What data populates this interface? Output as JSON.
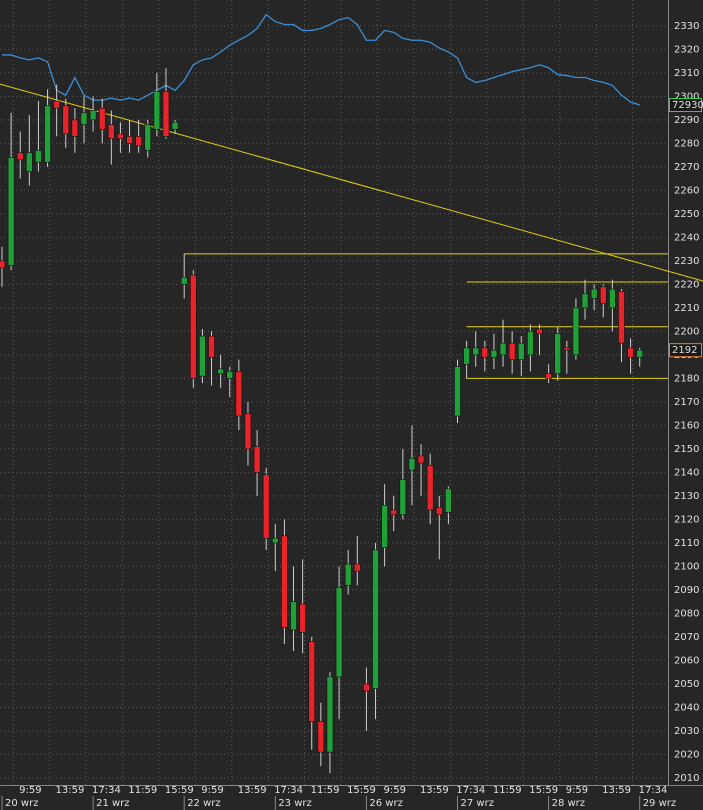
{
  "chart_data": {
    "type": "candlestick",
    "up_color": "#21a03a",
    "down_color": "#e8242a",
    "grid": true,
    "ylim": [
      2007,
      2341
    ],
    "yticks": [
      2010,
      2020,
      2030,
      2040,
      2050,
      2060,
      2070,
      2080,
      2090,
      2100,
      2110,
      2120,
      2130,
      2140,
      2150,
      2160,
      2170,
      2180,
      2190,
      2200,
      2210,
      2220,
      2230,
      2240,
      2250,
      2260,
      2270,
      2280,
      2290,
      2300,
      2310,
      2320,
      2330
    ],
    "y2lim": [
      66000,
      74000
    ],
    "categories": [
      null,
      "9:59",
      null,
      null,
      null,
      "13:59",
      null,
      null,
      null,
      "17:34",
      null,
      null,
      null,
      "11:59",
      null,
      null,
      null,
      "15:59",
      null,
      null,
      null,
      "9:59",
      null,
      null,
      null,
      "13:59",
      null,
      null,
      null,
      "17:34",
      null,
      null,
      null,
      "11:59",
      null,
      null,
      null,
      "15:59",
      null,
      null,
      null,
      "9:59",
      null,
      null,
      null,
      "13:59",
      null,
      null,
      null,
      "17:34",
      null,
      null,
      null,
      "11:59",
      null,
      null,
      null,
      "15:59",
      null,
      null,
      null,
      "9:59",
      null,
      null,
      null,
      "13:59",
      null,
      null,
      null,
      "17:34",
      null
    ],
    "dates": [
      "20 wrz",
      null,
      null,
      null,
      null,
      null,
      null,
      null,
      null,
      null,
      "21 wrz",
      null,
      null,
      null,
      null,
      null,
      null,
      null,
      null,
      null,
      "22 wrz",
      null,
      null,
      null,
      null,
      null,
      null,
      null,
      null,
      null,
      "23 wrz",
      null,
      null,
      null,
      null,
      null,
      null,
      null,
      null,
      null,
      "26 wrz",
      null,
      null,
      null,
      null,
      null,
      null,
      null,
      null,
      null,
      "27 wrz",
      null,
      null,
      null,
      null,
      null,
      null,
      null,
      null,
      null,
      "28 wrz",
      null,
      null,
      null,
      null,
      null,
      null,
      null,
      null,
      null,
      "29 wrz"
    ],
    "series": [
      {
        "open": [
          2230,
          2228,
          2276,
          2268,
          2272,
          2272,
          2298,
          2296,
          2290,
          2288,
          2290,
          2295,
          2288,
          2284,
          2283,
          2283,
          2277,
          2286,
          2302,
          2286,
          2220,
          2224,
          2181,
          2198,
          2182,
          2180,
          2183,
          2165,
          2151,
          2139,
          2110,
          2113,
          2073,
          2084,
          2068,
          2034,
          2021,
          2053,
          2092,
          2101,
          2050,
          2048,
          2108,
          2124,
          2122,
          2141,
          2147,
          2143,
          2125,
          2123,
          2164,
          2186,
          2190,
          2193,
          2189,
          2190,
          2195,
          2188,
          2190,
          2201,
          2182,
          2182,
          2193,
          2190,
          2210,
          2214,
          2219,
          2210,
          2217,
          2193,
          2189
        ],
        "high": [
          2236,
          2293,
          2285,
          2292,
          2298,
          2303,
          2305,
          2299,
          2295,
          2300,
          2300,
          2299,
          2294,
          2289,
          2290,
          2290,
          2290,
          2310,
          2312,
          2290,
          2233,
          2226,
          2201,
          2200,
          2190,
          2185,
          2188,
          2170,
          2158,
          2142,
          2118,
          2120,
          2100,
          2103,
          2070,
          2042,
          2055,
          2100,
          2107,
          2113,
          2057,
          2110,
          2135,
          2130,
          2150,
          2160,
          2152,
          2148,
          2130,
          2134,
          2188,
          2196,
          2200,
          2196,
          2199,
          2205,
          2200,
          2198,
          2203,
          2203,
          2186,
          2202,
          2196,
          2214,
          2222,
          2220,
          2220,
          2222,
          2218,
          2197,
          2193
        ],
        "low": [
          2219,
          2226,
          2265,
          2262,
          2268,
          2270,
          2283,
          2278,
          2276,
          2280,
          2285,
          2280,
          2271,
          2276,
          2276,
          2276,
          2274,
          2283,
          2282,
          2284,
          2214,
          2176,
          2178,
          2177,
          2176,
          2172,
          2158,
          2143,
          2130,
          2107,
          2098,
          2067,
          2064,
          2063,
          2022,
          2015,
          2012,
          2035,
          2088,
          2092,
          2030,
          2035,
          2100,
          2115,
          2120,
          2126,
          2130,
          2118,
          2103,
          2118,
          2161,
          2180,
          2185,
          2183,
          2184,
          2185,
          2182,
          2181,
          2183,
          2190,
          2178,
          2179,
          2182,
          2188,
          2205,
          2209,
          2206,
          2200,
          2187,
          2182,
          2185
        ],
        "close": [
          2227,
          2274,
          2273,
          2276,
          2277,
          2296,
          2295,
          2284,
          2283,
          2293,
          2294,
          2286,
          2282,
          2282,
          2280,
          2279,
          2288,
          2302,
          2283,
          2289,
          2223,
          2180,
          2198,
          2189,
          2184,
          2183,
          2164,
          2150,
          2140,
          2112,
          2112,
          2074,
          2085,
          2072,
          2034,
          2021,
          2053,
          2091,
          2101,
          2098,
          2047,
          2107,
          2126,
          2122,
          2137,
          2146,
          2144,
          2124,
          2122,
          2133,
          2185,
          2193,
          2193,
          2189,
          2192,
          2195,
          2188,
          2195,
          2200,
          2199,
          2180,
          2199,
          2192,
          2210,
          2216,
          2218,
          2212,
          2218,
          2195,
          2189,
          2192
        ],
        "label_color": "#e8822a"
      },
      {
        "axis": "y2",
        "color": "#3a8fd8",
        "label_color": "#2fd04a",
        "values": [
          73440,
          73440,
          73410,
          73390,
          73410,
          73370,
          73080,
          73030,
          73210,
          73030,
          72980,
          72980,
          73000,
          72980,
          73000,
          72980,
          73030,
          73080,
          73130,
          73080,
          73180,
          73340,
          73390,
          73410,
          73470,
          73540,
          73590,
          73640,
          73710,
          73850,
          73780,
          73750,
          73750,
          73690,
          73690,
          73710,
          73750,
          73800,
          73820,
          73750,
          73590,
          73590,
          73690,
          73670,
          73610,
          73590,
          73590,
          73570,
          73510,
          73470,
          73410,
          73210,
          73160,
          73180,
          73210,
          73240,
          73270,
          73290,
          73310,
          73340,
          73310,
          73240,
          73230,
          73210,
          73210,
          73180,
          73160,
          73130,
          73030,
          72960,
          72930
        ]
      }
    ],
    "line_color": "#e6d000",
    "horizontal_lines": [
      {
        "value": 2233,
        "start": 20
      },
      {
        "value": 2221,
        "start": 51
      },
      {
        "value": 2202,
        "start": 51
      },
      {
        "value": 2180,
        "start": 51
      }
    ],
    "trend_line": {
      "start": [
        0,
        2305
      ],
      "end": [
        70,
        2229
      ]
    }
  }
}
